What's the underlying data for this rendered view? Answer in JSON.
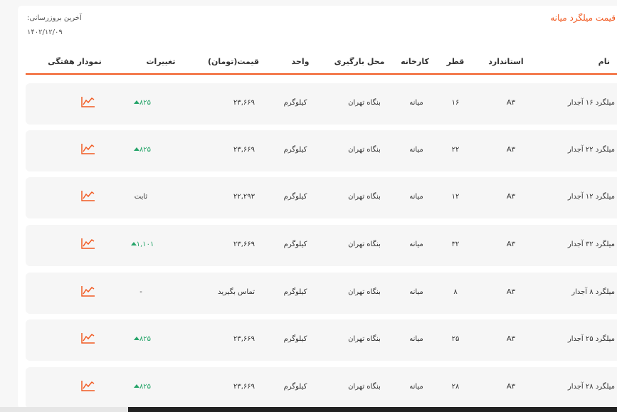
{
  "title": "قیمت میلگرد میانه",
  "last_update": {
    "label": "آخرین بروزرسانی:",
    "date": "۱۴۰۲/۱۲/۰۹"
  },
  "headers": {
    "name": "نام",
    "standard": "استاندارد",
    "diameter": "قطر",
    "factory": "کارخانه",
    "location": "محل بارگیری",
    "unit": "واحد",
    "price": "قیمت(تومان)",
    "change": "تغییرات",
    "chart": "نمودار هفتگی"
  },
  "colors": {
    "accent": "#f15a22",
    "up": "#27a56a"
  },
  "rows": [
    {
      "name": "میلگرد ۱۶ آجدار",
      "standard": "A۳",
      "diameter": "۱۶",
      "factory": "میانه",
      "location": "بنگاه تهران",
      "unit": "کیلوگرم",
      "price": "۲۳,۶۶۹",
      "change": "۸۲۵",
      "trend": "up",
      "chart_icon": "line-chart-icon"
    },
    {
      "name": "میلگرد ۲۲ آجدار",
      "standard": "A۳",
      "diameter": "۲۲",
      "factory": "میانه",
      "location": "بنگاه تهران",
      "unit": "کیلوگرم",
      "price": "۲۳,۶۶۹",
      "change": "۸۲۵",
      "trend": "up",
      "chart_icon": "line-chart-icon"
    },
    {
      "name": "میلگرد ۱۲ آجدار",
      "standard": "A۳",
      "diameter": "۱۲",
      "factory": "میانه",
      "location": "بنگاه تهران",
      "unit": "کیلوگرم",
      "price": "۲۲,۲۹۳",
      "change": "ثابت",
      "trend": "none",
      "chart_icon": "line-chart-icon"
    },
    {
      "name": "میلگرد ۳۲ آجدار",
      "standard": "A۳",
      "diameter": "۳۲",
      "factory": "میانه",
      "location": "بنگاه تهران",
      "unit": "کیلوگرم",
      "price": "۲۳,۶۶۹",
      "change": "۱,۱۰۱",
      "trend": "up",
      "chart_icon": "line-chart-icon"
    },
    {
      "name": "میلگرد ۸ آجدار",
      "standard": "A۳",
      "diameter": "۸",
      "factory": "میانه",
      "location": "بنگاه تهران",
      "unit": "کیلوگرم",
      "price": "تماس بگیرید",
      "change": "-",
      "trend": "none",
      "chart_icon": "line-chart-icon"
    },
    {
      "name": "میلگرد ۲۵ آجدار",
      "standard": "A۳",
      "diameter": "۲۵",
      "factory": "میانه",
      "location": "بنگاه تهران",
      "unit": "کیلوگرم",
      "price": "۲۳,۶۶۹",
      "change": "۸۲۵",
      "trend": "up",
      "chart_icon": "line-chart-icon"
    },
    {
      "name": "میلگرد ۲۸ آجدار",
      "standard": "A۳",
      "diameter": "۲۸",
      "factory": "میانه",
      "location": "بنگاه تهران",
      "unit": "کیلوگرم",
      "price": "۲۳,۶۶۹",
      "change": "۸۲۵",
      "trend": "up",
      "chart_icon": "line-chart-icon"
    }
  ]
}
